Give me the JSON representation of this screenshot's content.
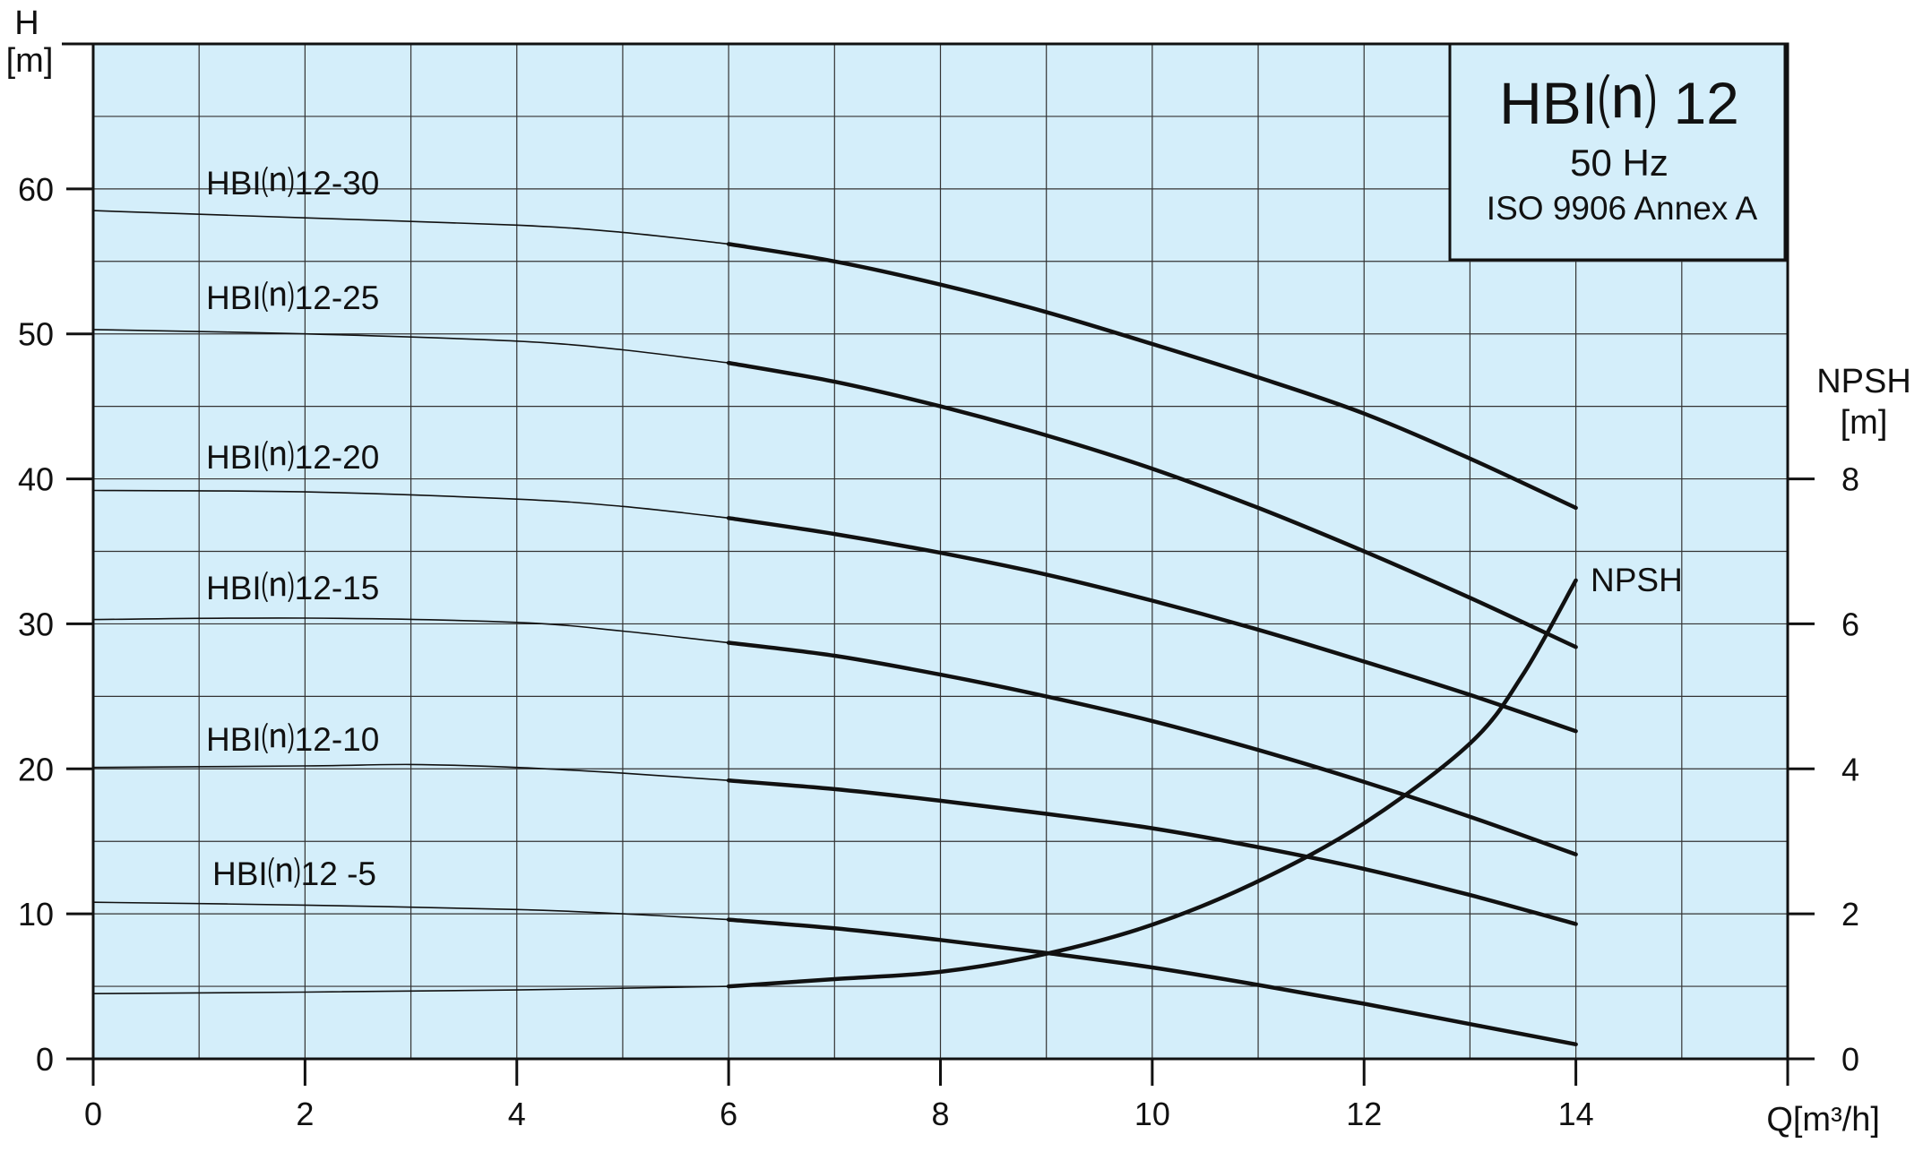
{
  "chart_data": {
    "type": "line",
    "title_box": {
      "title": "HBI⒩ 12",
      "frequency": "50 Hz",
      "standard": "ISO 9906 Annex A"
    },
    "x_axis": {
      "label": "Q[m³/h]",
      "range": [
        0,
        16
      ],
      "ticks": [
        "0",
        "2",
        "4",
        "6",
        "8",
        "10",
        "12",
        "14"
      ],
      "tick_values": [
        0,
        2,
        4,
        6,
        8,
        10,
        12,
        14
      ],
      "minor_step": 1
    },
    "y_axis_left": {
      "label_line1": "H",
      "label_line2": "[m]",
      "range": [
        0,
        70
      ],
      "ticks": [
        "0",
        "10",
        "20",
        "30",
        "40",
        "50",
        "60"
      ],
      "tick_values": [
        0,
        10,
        20,
        30,
        40,
        50,
        60
      ],
      "minor_step": 5
    },
    "y_axis_right": {
      "label_line1": "NPSH",
      "label_line2": "[m]",
      "range": [
        0,
        14
      ],
      "ticks": [
        "0",
        "2",
        "4",
        "6",
        "8"
      ],
      "tick_values": [
        0,
        2,
        4,
        6,
        8
      ]
    },
    "grid": true,
    "colors": {
      "plot_background": "#d4eefa",
      "line": "#111111",
      "grid": "#333333"
    },
    "series": [
      {
        "name": "HBI⒩12-30",
        "axis": "left",
        "thin": {
          "x": [
            0,
            2,
            4,
            5,
            6
          ],
          "y": [
            58.5,
            58.0,
            57.5,
            57.0,
            56.2
          ]
        },
        "bold": {
          "x": [
            6,
            7,
            8,
            9,
            10,
            11,
            12,
            13,
            14
          ],
          "y": [
            56.2,
            55.0,
            53.4,
            51.5,
            49.3,
            47.0,
            44.5,
            41.4,
            38.0
          ]
        }
      },
      {
        "name": "HBI⒩12-25",
        "axis": "left",
        "thin": {
          "x": [
            0,
            2,
            4,
            5,
            6
          ],
          "y": [
            50.3,
            50.0,
            49.5,
            48.9,
            48.0
          ]
        },
        "bold": {
          "x": [
            6,
            7,
            8,
            9,
            10,
            11,
            12,
            13,
            14
          ],
          "y": [
            48.0,
            46.7,
            45.0,
            43.0,
            40.7,
            38.0,
            35.0,
            31.8,
            28.4
          ]
        }
      },
      {
        "name": "HBI⒩12-20",
        "axis": "left",
        "thin": {
          "x": [
            0,
            2,
            4,
            5,
            6
          ],
          "y": [
            39.2,
            39.1,
            38.6,
            38.1,
            37.3
          ]
        },
        "bold": {
          "x": [
            6,
            7,
            8,
            9,
            10,
            11,
            12,
            13,
            14
          ],
          "y": [
            37.3,
            36.2,
            34.9,
            33.4,
            31.6,
            29.6,
            27.4,
            25.1,
            22.6
          ]
        }
      },
      {
        "name": "HBI⒩12-15",
        "axis": "left",
        "thin": {
          "x": [
            0,
            2,
            4,
            5,
            6
          ],
          "y": [
            30.3,
            30.4,
            30.1,
            29.5,
            28.7
          ]
        },
        "bold": {
          "x": [
            6,
            7,
            8,
            9,
            10,
            11,
            12,
            13,
            14
          ],
          "y": [
            28.7,
            27.8,
            26.5,
            25.0,
            23.3,
            21.3,
            19.1,
            16.7,
            14.1
          ]
        }
      },
      {
        "name": "HBI⒩12-10",
        "axis": "left",
        "thin": {
          "x": [
            0,
            2,
            3,
            4,
            5,
            6
          ],
          "y": [
            20.1,
            20.2,
            20.3,
            20.1,
            19.7,
            19.2
          ]
        },
        "bold": {
          "x": [
            6,
            7,
            8,
            9,
            10,
            11,
            12,
            13,
            14
          ],
          "y": [
            19.2,
            18.6,
            17.8,
            16.9,
            15.9,
            14.6,
            13.1,
            11.3,
            9.3
          ]
        }
      },
      {
        "name": "HBI⒩12 -5",
        "axis": "left",
        "thin": {
          "x": [
            0,
            2,
            4,
            5,
            6
          ],
          "y": [
            10.8,
            10.6,
            10.3,
            10.0,
            9.6
          ]
        },
        "bold": {
          "x": [
            6,
            7,
            8,
            9,
            10,
            11,
            12,
            13,
            14
          ],
          "y": [
            9.6,
            9.0,
            8.2,
            7.3,
            6.3,
            5.1,
            3.8,
            2.4,
            1.0
          ]
        }
      },
      {
        "name": "NPSH",
        "axis": "right",
        "thin": {
          "x": [
            0,
            2,
            4,
            6
          ],
          "y": [
            0.9,
            0.92,
            0.95,
            1.0
          ]
        },
        "bold": {
          "x": [
            6,
            7,
            8,
            9,
            10,
            11,
            12,
            13,
            13.5,
            14
          ],
          "y": [
            1.0,
            1.1,
            1.2,
            1.45,
            1.85,
            2.45,
            3.25,
            4.35,
            5.3,
            6.6
          ]
        }
      }
    ]
  }
}
